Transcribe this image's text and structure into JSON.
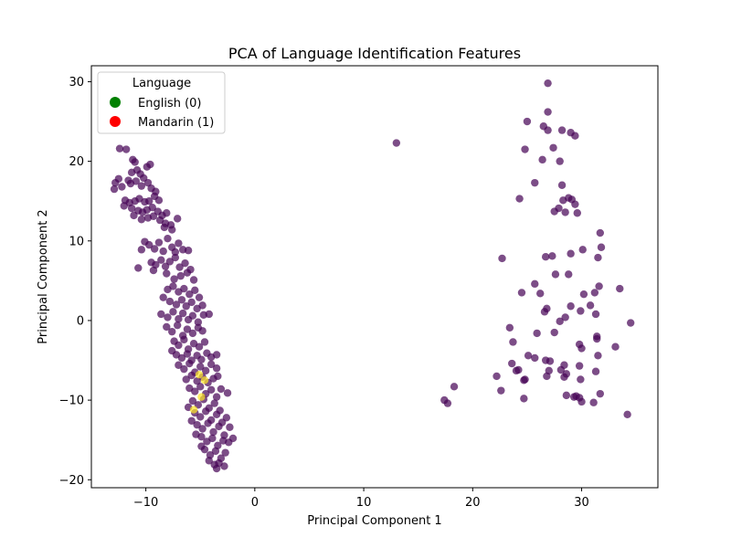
{
  "chart_data": {
    "type": "scatter",
    "title": "PCA of Language Identification Features",
    "xlabel": "Principal Component 1",
    "ylabel": "Principal Component 2",
    "xlim": [
      -15,
      37
    ],
    "ylim": [
      -21,
      32
    ],
    "xticks": [
      -10,
      0,
      10,
      20,
      30
    ],
    "yticks": [
      -20,
      -10,
      0,
      10,
      20,
      30
    ],
    "grid": false,
    "legend": {
      "title": "Language",
      "placement": "top-left",
      "entries": [
        {
          "label": "English (0)",
          "color": "#008000"
        },
        {
          "label": "Mandarin (1)",
          "color": "#ff0000"
        }
      ]
    },
    "point_colors": {
      "class_0": "#440154",
      "class_1": "#fde725"
    },
    "series": [
      {
        "points": [
          [
            -12.4,
            21.6
          ],
          [
            -11.8,
            21.5
          ],
          [
            -12.5,
            17.8
          ],
          [
            -12.8,
            17.3
          ],
          [
            -12.2,
            16.8
          ],
          [
            -11.6,
            17.6
          ],
          [
            -12.9,
            16.5
          ],
          [
            -11.2,
            20.2
          ],
          [
            -11.0,
            19.9
          ],
          [
            -10.8,
            18.9
          ],
          [
            -11.3,
            18.6
          ],
          [
            -10.5,
            18.4
          ],
          [
            -9.9,
            19.3
          ],
          [
            -9.6,
            19.6
          ],
          [
            -10.2,
            17.9
          ],
          [
            -11.4,
            17.2
          ],
          [
            -10.9,
            17.5
          ],
          [
            -10.4,
            16.9
          ],
          [
            -9.8,
            17.3
          ],
          [
            -9.5,
            16.6
          ],
          [
            -9.1,
            16.2
          ],
          [
            -11.9,
            15.1
          ],
          [
            -11.5,
            14.8
          ],
          [
            -11.0,
            15.0
          ],
          [
            -10.6,
            15.3
          ],
          [
            -10.1,
            14.9
          ],
          [
            -9.7,
            15.0
          ],
          [
            -9.2,
            15.6
          ],
          [
            -8.8,
            15.1
          ],
          [
            -12.0,
            14.4
          ],
          [
            -11.3,
            14.1
          ],
          [
            -10.7,
            13.8
          ],
          [
            -11.1,
            13.2
          ],
          [
            -10.3,
            13.6
          ],
          [
            -9.9,
            13.9
          ],
          [
            -9.4,
            14.2
          ],
          [
            -8.9,
            13.7
          ],
          [
            -8.5,
            13.2
          ],
          [
            -8.1,
            13.5
          ],
          [
            -10.4,
            12.7
          ],
          [
            -9.8,
            12.9
          ],
          [
            -9.3,
            13.1
          ],
          [
            -8.7,
            12.6
          ],
          [
            -8.2,
            12.2
          ],
          [
            -7.7,
            12.0
          ],
          [
            -7.1,
            12.8
          ],
          [
            -7.6,
            11.4
          ],
          [
            -8.3,
            11.7
          ],
          [
            -10.1,
            9.9
          ],
          [
            -10.4,
            8.9
          ],
          [
            -9.7,
            9.5
          ],
          [
            -9.2,
            9.0
          ],
          [
            -8.8,
            9.8
          ],
          [
            -8.4,
            8.7
          ],
          [
            -8.0,
            10.3
          ],
          [
            -7.6,
            9.2
          ],
          [
            -7.3,
            8.6
          ],
          [
            -7.0,
            9.7
          ],
          [
            -6.6,
            8.9
          ],
          [
            -6.1,
            8.8
          ],
          [
            -9.5,
            7.3
          ],
          [
            -9.1,
            7.0
          ],
          [
            -8.6,
            7.6
          ],
          [
            -8.2,
            6.8
          ],
          [
            -7.8,
            7.4
          ],
          [
            -7.3,
            7.9
          ],
          [
            -6.9,
            6.7
          ],
          [
            -6.4,
            7.2
          ],
          [
            -5.9,
            6.4
          ],
          [
            -10.7,
            6.6
          ],
          [
            -9.3,
            6.3
          ],
          [
            -8.1,
            5.9
          ],
          [
            -7.4,
            5.2
          ],
          [
            -6.8,
            5.6
          ],
          [
            -6.2,
            6.0
          ],
          [
            -5.6,
            5.1
          ],
          [
            -8.0,
            3.9
          ],
          [
            -7.5,
            4.3
          ],
          [
            -7.0,
            3.6
          ],
          [
            -6.5,
            4.0
          ],
          [
            -6.0,
            3.3
          ],
          [
            -5.5,
            3.8
          ],
          [
            -5.1,
            2.9
          ],
          [
            -8.4,
            2.9
          ],
          [
            -7.8,
            2.4
          ],
          [
            -7.2,
            2.0
          ],
          [
            -6.7,
            2.6
          ],
          [
            -6.3,
            1.8
          ],
          [
            -5.8,
            2.3
          ],
          [
            -5.3,
            1.5
          ],
          [
            -4.8,
            1.9
          ],
          [
            -8.6,
            0.8
          ],
          [
            -8.0,
            0.4
          ],
          [
            -7.5,
            1.1
          ],
          [
            -7.0,
            0.2
          ],
          [
            -6.6,
            0.9
          ],
          [
            -6.1,
            0.1
          ],
          [
            -5.7,
            0.6
          ],
          [
            -5.2,
            -0.2
          ],
          [
            -4.7,
            0.7
          ],
          [
            -4.2,
            0.8
          ],
          [
            -8.1,
            -0.8
          ],
          [
            -7.6,
            -1.4
          ],
          [
            -7.1,
            -0.6
          ],
          [
            -6.6,
            -1.9
          ],
          [
            -6.2,
            -1.1
          ],
          [
            -5.7,
            -1.6
          ],
          [
            -5.2,
            -0.9
          ],
          [
            -4.8,
            -1.3
          ],
          [
            -7.4,
            -2.6
          ],
          [
            -7.0,
            -3.1
          ],
          [
            -6.5,
            -2.4
          ],
          [
            -6.1,
            -3.6
          ],
          [
            -5.6,
            -2.9
          ],
          [
            -5.1,
            -3.3
          ],
          [
            -4.6,
            -2.7
          ],
          [
            -7.6,
            -3.8
          ],
          [
            -7.2,
            -4.3
          ],
          [
            -6.7,
            -4.7
          ],
          [
            -6.2,
            -4.2
          ],
          [
            -5.8,
            -5.0
          ],
          [
            -5.3,
            -4.4
          ],
          [
            -4.9,
            -4.9
          ],
          [
            -4.4,
            -4.1
          ],
          [
            -4.0,
            -4.6
          ],
          [
            -3.5,
            -4.3
          ],
          [
            -7.0,
            -5.6
          ],
          [
            -6.5,
            -6.1
          ],
          [
            -6.0,
            -5.4
          ],
          [
            -5.5,
            -6.5
          ],
          [
            -5.0,
            -5.8
          ],
          [
            -4.5,
            -6.3
          ],
          [
            -4.0,
            -5.5
          ],
          [
            -3.5,
            -6.0
          ],
          [
            -6.3,
            -7.4
          ],
          [
            -5.8,
            -6.9
          ],
          [
            -5.3,
            -7.6
          ],
          [
            -4.8,
            -7.1
          ],
          [
            -4.3,
            -7.8
          ],
          [
            -3.8,
            -7.3
          ],
          [
            -3.4,
            -7.0
          ],
          [
            -6.0,
            -8.5
          ],
          [
            -5.5,
            -8.9
          ],
          [
            -5.0,
            -8.3
          ],
          [
            -4.5,
            -9.2
          ],
          [
            -4.0,
            -8.7
          ],
          [
            -3.5,
            -9.6
          ],
          [
            -3.1,
            -8.6
          ],
          [
            -2.5,
            -9.1
          ],
          [
            -5.7,
            -10.1
          ],
          [
            -5.2,
            -10.6
          ],
          [
            -4.7,
            -9.9
          ],
          [
            -4.2,
            -11.0
          ],
          [
            -3.7,
            -10.4
          ],
          [
            -3.2,
            -11.3
          ],
          [
            -5.5,
            -11.6
          ],
          [
            -5.0,
            -12.1
          ],
          [
            -4.5,
            -11.4
          ],
          [
            -4.0,
            -12.5
          ],
          [
            -3.5,
            -11.8
          ],
          [
            -3.0,
            -12.8
          ],
          [
            -2.6,
            -12.2
          ],
          [
            -5.3,
            -13.1
          ],
          [
            -4.8,
            -13.6
          ],
          [
            -4.3,
            -12.9
          ],
          [
            -3.8,
            -14.0
          ],
          [
            -3.3,
            -13.3
          ],
          [
            -2.8,
            -14.4
          ],
          [
            -2.3,
            -13.4
          ],
          [
            -4.9,
            -14.6
          ],
          [
            -4.4,
            -15.2
          ],
          [
            -3.9,
            -14.8
          ],
          [
            -3.4,
            -15.7
          ],
          [
            -2.9,
            -15.1
          ],
          [
            -2.4,
            -15.3
          ],
          [
            -2.0,
            -14.8
          ],
          [
            -4.6,
            -16.2
          ],
          [
            -4.1,
            -16.9
          ],
          [
            -3.6,
            -16.4
          ],
          [
            -3.1,
            -17.3
          ],
          [
            -2.7,
            -16.6
          ],
          [
            -4.2,
            -17.6
          ],
          [
            -3.7,
            -18.1
          ],
          [
            -3.3,
            -17.9
          ],
          [
            -2.8,
            -18.3
          ],
          [
            -3.5,
            -18.6
          ],
          [
            -4.9,
            -15.8
          ],
          [
            -5.4,
            -14.3
          ],
          [
            -5.8,
            -12.6
          ],
          [
            -6.1,
            -10.9
          ],
          [
            13.0,
            22.3
          ],
          [
            26.9,
            29.8
          ],
          [
            26.9,
            26.2
          ],
          [
            25.0,
            25.0
          ],
          [
            26.5,
            24.4
          ],
          [
            26.9,
            23.9
          ],
          [
            28.2,
            23.9
          ],
          [
            29.0,
            23.6
          ],
          [
            29.4,
            23.2
          ],
          [
            24.8,
            21.5
          ],
          [
            27.4,
            21.7
          ],
          [
            26.4,
            20.2
          ],
          [
            28.0,
            20.0
          ],
          [
            25.7,
            17.3
          ],
          [
            28.2,
            17.0
          ],
          [
            24.3,
            15.3
          ],
          [
            28.8,
            15.4
          ],
          [
            29.1,
            15.2
          ],
          [
            28.3,
            15.1
          ],
          [
            29.4,
            14.6
          ],
          [
            27.9,
            14.1
          ],
          [
            27.5,
            13.7
          ],
          [
            28.5,
            13.6
          ],
          [
            29.6,
            13.5
          ],
          [
            31.7,
            11.0
          ],
          [
            31.8,
            9.2
          ],
          [
            30.1,
            8.9
          ],
          [
            29.0,
            8.4
          ],
          [
            26.7,
            8.0
          ],
          [
            27.3,
            8.1
          ],
          [
            22.7,
            7.8
          ],
          [
            31.5,
            7.9
          ],
          [
            27.6,
            5.8
          ],
          [
            28.8,
            5.8
          ],
          [
            25.7,
            4.6
          ],
          [
            31.6,
            4.3
          ],
          [
            33.5,
            4.0
          ],
          [
            30.2,
            3.3
          ],
          [
            24.5,
            3.5
          ],
          [
            26.2,
            3.4
          ],
          [
            31.2,
            3.5
          ],
          [
            29.0,
            1.8
          ],
          [
            30.8,
            1.9
          ],
          [
            26.8,
            1.5
          ],
          [
            26.6,
            1.1
          ],
          [
            29.9,
            1.2
          ],
          [
            31.3,
            0.8
          ],
          [
            28.5,
            0.4
          ],
          [
            28.0,
            -0.1
          ],
          [
            34.5,
            -0.3
          ],
          [
            23.4,
            -0.9
          ],
          [
            25.9,
            -1.6
          ],
          [
            27.5,
            -1.5
          ],
          [
            31.4,
            -2.0
          ],
          [
            31.4,
            -2.3
          ],
          [
            23.7,
            -2.7
          ],
          [
            29.8,
            -3.0
          ],
          [
            30.0,
            -3.5
          ],
          [
            33.1,
            -3.3
          ],
          [
            25.1,
            -4.4
          ],
          [
            25.7,
            -4.7
          ],
          [
            26.7,
            -5.0
          ],
          [
            27.1,
            -5.1
          ],
          [
            31.5,
            -4.4
          ],
          [
            23.6,
            -5.4
          ],
          [
            28.4,
            -5.6
          ],
          [
            29.8,
            -5.7
          ],
          [
            24.0,
            -6.3
          ],
          [
            24.2,
            -6.2
          ],
          [
            27.0,
            -6.3
          ],
          [
            28.1,
            -6.2
          ],
          [
            31.3,
            -6.4
          ],
          [
            28.6,
            -6.7
          ],
          [
            28.4,
            -7.1
          ],
          [
            26.8,
            -7.0
          ],
          [
            22.2,
            -7.0
          ],
          [
            29.9,
            -7.4
          ],
          [
            24.7,
            -7.5
          ],
          [
            24.8,
            -7.4
          ],
          [
            18.3,
            -8.3
          ],
          [
            22.6,
            -8.8
          ],
          [
            28.6,
            -9.4
          ],
          [
            29.5,
            -9.5
          ],
          [
            29.3,
            -9.6
          ],
          [
            29.8,
            -9.7
          ],
          [
            31.7,
            -9.2
          ],
          [
            17.4,
            -10.0
          ],
          [
            17.7,
            -10.4
          ],
          [
            24.7,
            -9.8
          ],
          [
            30.0,
            -10.2
          ],
          [
            31.1,
            -10.3
          ],
          [
            34.2,
            -11.8
          ]
        ]
      },
      {
        "points": [
          [
            -5.1,
            -6.8
          ],
          [
            -4.6,
            -7.5
          ],
          [
            -4.9,
            -9.6
          ],
          [
            -5.6,
            -11.2
          ]
        ]
      }
    ]
  }
}
